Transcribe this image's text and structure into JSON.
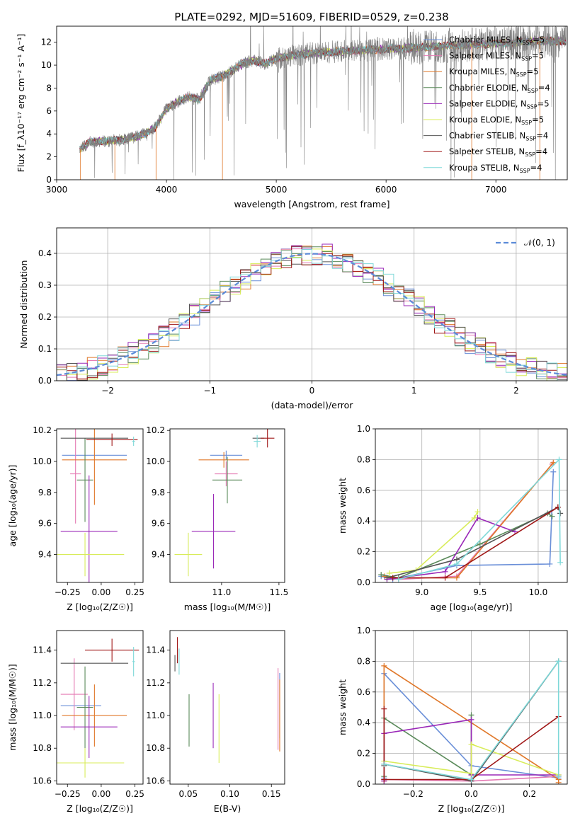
{
  "title": "PLATE=0292, MJD=51609, FIBERID=0529, z=0.238",
  "models": [
    {
      "name": "Chabrier MILES",
      "nssp": "5",
      "color": "#6a8fd8"
    },
    {
      "name": "Salpeter MILES",
      "nssp": "5",
      "color": "#e57ab3"
    },
    {
      "name": "Kroupa MILES",
      "nssp": "5",
      "color": "#e0782a"
    },
    {
      "name": "Chabrier ELODIE",
      "nssp": "4",
      "color": "#5a8a5a"
    },
    {
      "name": "Salpeter ELODIE",
      "nssp": "5",
      "color": "#9a28b8"
    },
    {
      "name": "Kroupa ELODIE",
      "nssp": "5",
      "color": "#d8ec5a"
    },
    {
      "name": "Chabrier STELIB",
      "nssp": "4",
      "color": "#555555"
    },
    {
      "name": "Salpeter STELIB",
      "nssp": "4",
      "color": "#a01818"
    },
    {
      "name": "Kroupa STELIB",
      "nssp": "4",
      "color": "#7ed8d8"
    }
  ],
  "chart_data": [
    {
      "id": "spectrum",
      "type": "line",
      "xlabel": "wavelength [Angstrom, rest frame]",
      "ylabel": "Flux [f_λ10⁻¹⁷ erg cm⁻² s⁻¹ A⁻¹]",
      "xlim": [
        3000,
        7650
      ],
      "ylim": [
        0,
        13.4
      ],
      "xticks": [
        3000,
        4000,
        5000,
        6000,
        7000
      ],
      "yticks": [
        0,
        2,
        4,
        6,
        8,
        10,
        12
      ],
      "data_color": "#808080",
      "continuum_x": [
        3200,
        3300,
        3500,
        3600,
        3700,
        3800,
        3900,
        4000,
        4100,
        4200,
        4300,
        4400,
        4500,
        4600,
        4700,
        4800,
        4900,
        5000,
        5200,
        5400,
        5600,
        5800,
        6000,
        6200,
        6400,
        6600,
        6800,
        7000,
        7200,
        7400,
        7600
      ],
      "continuum_y": [
        2.6,
        3.3,
        3.4,
        3.5,
        3.7,
        4.0,
        4.6,
        6.2,
        6.8,
        7.2,
        7.0,
        8.7,
        9.0,
        9.5,
        10.2,
        10.4,
        10.1,
        10.6,
        10.9,
        11.1,
        11.2,
        11.3,
        11.4,
        11.5,
        11.6,
        11.7,
        11.8,
        11.9,
        12.0,
        12.1,
        12.1
      ],
      "legend_position": "upper-right"
    },
    {
      "id": "residuals",
      "type": "histogram",
      "xlabel": "(data-model)/error",
      "ylabel": "Normed distribution",
      "xlim": [
        -2.5,
        2.5
      ],
      "ylim": [
        0,
        0.48
      ],
      "xticks": [
        -2,
        -1,
        0,
        1,
        2
      ],
      "yticks": [
        0.0,
        0.1,
        0.2,
        0.3,
        0.4
      ],
      "bin_width": 0.1,
      "curve_label": "𝒩(0, 1)",
      "curve_color": "#5b8bd8",
      "legend_position": "upper-right"
    },
    {
      "id": "age-vs-Z",
      "type": "errorbar",
      "xlabel": "Z [log₁₀(Z/Z☉)]",
      "ylabel": "age  [log₁₀(age/yr)]",
      "xlim": [
        -0.33,
        0.31
      ],
      "ylim": [
        9.22,
        10.21
      ],
      "xticks": [
        -0.25,
        0.0,
        0.25
      ],
      "xticklabels": [
        "−0.25",
        "0.00",
        "0.25"
      ],
      "yticks": [
        9.4,
        9.6,
        9.8,
        10.0,
        10.2
      ],
      "points": [
        {
          "m": 0,
          "x": -0.05,
          "xe": 0.24,
          "y": 10.04,
          "ye": 0.0
        },
        {
          "m": 1,
          "x": -0.19,
          "xe": 0.04,
          "y": 9.92,
          "ye": 0.32
        },
        {
          "m": 2,
          "x": -0.05,
          "xe": 0.24,
          "y": 10.01,
          "ye": 0.29
        },
        {
          "m": 3,
          "x": -0.12,
          "xe": 0.06,
          "y": 9.88,
          "ye": 0.27
        },
        {
          "m": 4,
          "x": -0.09,
          "xe": 0.21,
          "y": 9.55,
          "ye": 0.36
        },
        {
          "m": 5,
          "x": -0.12,
          "xe": 0.29,
          "y": 9.4,
          "ye": 0.14
        },
        {
          "m": 6,
          "x": -0.05,
          "xe": 0.25,
          "y": 10.15,
          "ye": 0.0
        },
        {
          "m": 7,
          "x": 0.08,
          "xe": 0.19,
          "y": 10.14,
          "ye": 0.04
        },
        {
          "m": 8,
          "x": 0.24,
          "xe": 0.01,
          "y": 10.13,
          "ye": 0.03
        }
      ]
    },
    {
      "id": "age-vs-mass",
      "type": "errorbar",
      "xlabel": "mass [log₁₀(M/M☉)]",
      "ylabel": "",
      "xlim": [
        10.55,
        11.55
      ],
      "ylim": [
        9.22,
        10.21
      ],
      "xticks": [
        11.0,
        11.5
      ],
      "yticks": [
        9.4,
        9.6,
        9.8,
        10.0,
        10.2
      ],
      "points": [
        {
          "m": 0,
          "x": 11.04,
          "xe": 0.14,
          "y": 10.04,
          "ye": 0.03
        },
        {
          "m": 1,
          "x": 11.04,
          "xe": 0.1,
          "y": 9.92,
          "ye": 0.08
        },
        {
          "m": 2,
          "x": 11.02,
          "xe": 0.22,
          "y": 10.01,
          "ye": 0.05
        },
        {
          "m": 3,
          "x": 11.05,
          "xe": 0.13,
          "y": 9.88,
          "ye": 0.15
        },
        {
          "m": 4,
          "x": 10.93,
          "xe": 0.19,
          "y": 9.55,
          "ye": 0.24
        },
        {
          "m": 5,
          "x": 10.71,
          "xe": 0.12,
          "y": 9.4,
          "ye": 0.14
        },
        {
          "m": 6,
          "x": 11.32,
          "xe": 0.05,
          "y": 10.15,
          "ye": 0.0
        },
        {
          "m": 7,
          "x": 11.4,
          "xe": 0.06,
          "y": 10.15,
          "ye": 0.06
        },
        {
          "m": 8,
          "x": 11.31,
          "xe": 0.03,
          "y": 10.13,
          "ye": 0.04
        }
      ]
    },
    {
      "id": "mass-weight-vs-age",
      "type": "line",
      "xlabel": "age  [log₁₀(age/yr)]",
      "ylabel": "mass weight",
      "xlim": [
        8.6,
        10.25
      ],
      "ylim": [
        0,
        1.0
      ],
      "xticks": [
        9.0,
        9.5,
        10.0
      ],
      "yticks": [
        0.0,
        0.2,
        0.4,
        0.6,
        0.8,
        1.0
      ],
      "series": [
        {
          "m": 0,
          "x": [
            8.65,
            8.75,
            9.3,
            10.1,
            10.13
          ],
          "y": [
            0.04,
            0.02,
            0.11,
            0.12,
            0.72
          ]
        },
        {
          "m": 1,
          "x": [
            8.7,
            8.8,
            9.3,
            10.12
          ],
          "y": [
            0.03,
            0.02,
            0.04,
            0.77
          ]
        },
        {
          "m": 2,
          "x": [
            8.68,
            8.8,
            9.3,
            10.13
          ],
          "y": [
            0.04,
            0.03,
            0.03,
            0.78
          ]
        },
        {
          "m": 3,
          "x": [
            8.65,
            8.8,
            9.5,
            10.08,
            10.12
          ],
          "y": [
            0.05,
            0.03,
            0.25,
            0.45,
            0.43
          ]
        },
        {
          "m": 4,
          "x": [
            8.7,
            9.2,
            9.48,
            9.8
          ],
          "y": [
            0.02,
            0.07,
            0.42,
            0.33
          ]
        },
        {
          "m": 5,
          "x": [
            8.72,
            8.95,
            9.45,
            9.48
          ],
          "y": [
            0.06,
            0.08,
            0.42,
            0.46
          ]
        },
        {
          "m": 6,
          "x": [
            8.7,
            9.3,
            10.17,
            10.19
          ],
          "y": [
            0.03,
            0.15,
            0.49,
            0.45
          ]
        },
        {
          "m": 7,
          "x": [
            8.75,
            9.2,
            10.17
          ],
          "y": [
            0.03,
            0.03,
            0.49
          ]
        },
        {
          "m": 8,
          "x": [
            8.8,
            9.3,
            10.18,
            10.19
          ],
          "y": [
            0.02,
            0.12,
            0.8,
            0.13
          ]
        }
      ]
    },
    {
      "id": "mass-vs-Z",
      "type": "errorbar",
      "xlabel": "Z [log₁₀(Z/Z☉)]",
      "ylabel": "mass [log₁₀(M/M☉)]",
      "xlim": [
        -0.33,
        0.31
      ],
      "ylim": [
        10.58,
        11.52
      ],
      "xticks": [
        -0.25,
        0.0,
        0.25
      ],
      "xticklabels": [
        "−0.25",
        "0.00",
        "0.25"
      ],
      "yticks": [
        10.6,
        10.8,
        11.0,
        11.2,
        11.4
      ],
      "points": [
        {
          "m": 0,
          "x": -0.15,
          "xe": 0.15,
          "y": 11.06,
          "ye": 0.0
        },
        {
          "m": 1,
          "x": -0.2,
          "xe": 0.1,
          "y": 11.13,
          "ye": 0.22
        },
        {
          "m": 2,
          "x": -0.05,
          "xe": 0.24,
          "y": 11.0,
          "ye": 0.19
        },
        {
          "m": 3,
          "x": -0.12,
          "xe": 0.06,
          "y": 11.05,
          "ye": 0.25
        },
        {
          "m": 4,
          "x": -0.09,
          "xe": 0.21,
          "y": 10.93,
          "ye": 0.19
        },
        {
          "m": 5,
          "x": -0.12,
          "xe": 0.29,
          "y": 10.71,
          "ye": 0.09
        },
        {
          "m": 6,
          "x": -0.05,
          "xe": 0.25,
          "y": 11.32,
          "ye": 0.0
        },
        {
          "m": 7,
          "x": 0.08,
          "xe": 0.2,
          "y": 11.4,
          "ye": 0.07
        },
        {
          "m": 8,
          "x": 0.24,
          "xe": 0.01,
          "y": 11.33,
          "ye": 0.09
        }
      ]
    },
    {
      "id": "mass-vs-EBV",
      "type": "errorbar",
      "xlabel": "E(B-V)",
      "ylabel": "",
      "xlim": [
        0.028,
        0.166
      ],
      "ylim": [
        10.58,
        11.52
      ],
      "xticks": [
        0.05,
        0.1,
        0.15
      ],
      "xticklabels": [
        "0.05",
        "0.10",
        "0.15"
      ],
      "yticks": [
        10.6,
        10.8,
        11.0,
        11.2,
        11.4
      ],
      "points": [
        {
          "m": 0,
          "x": 0.16,
          "xe": 0.0,
          "y": 11.06,
          "ye": 0.2
        },
        {
          "m": 1,
          "x": 0.158,
          "xe": 0.0,
          "y": 11.04,
          "ye": 0.25
        },
        {
          "m": 2,
          "x": 0.16,
          "xe": 0.0,
          "y": 11.0,
          "ye": 0.22
        },
        {
          "m": 3,
          "x": 0.051,
          "xe": 0.0,
          "y": 10.97,
          "ye": 0.16
        },
        {
          "m": 4,
          "x": 0.08,
          "xe": 0.0,
          "y": 11.0,
          "ye": 0.2
        },
        {
          "m": 5,
          "x": 0.087,
          "xe": 0.0,
          "y": 10.92,
          "ye": 0.21
        },
        {
          "m": 6,
          "x": 0.034,
          "xe": 0.0,
          "y": 11.32,
          "ye": 0.05
        },
        {
          "m": 7,
          "x": 0.037,
          "xe": 0.0,
          "y": 11.4,
          "ye": 0.08
        },
        {
          "m": 8,
          "x": 0.039,
          "xe": 0.0,
          "y": 11.33,
          "ye": 0.08
        }
      ]
    },
    {
      "id": "mass-weight-vs-Z",
      "type": "line",
      "xlabel": "Z [log₁₀(Z/Z☉)]",
      "ylabel": "mass weight",
      "xlim": [
        -0.33,
        0.33
      ],
      "ylim": [
        0,
        1.0
      ],
      "xticks": [
        -0.2,
        0.0,
        0.2
      ],
      "xticklabels": [
        "−0.2",
        "0.0",
        "0.2"
      ],
      "yticks": [
        0.0,
        0.2,
        0.4,
        0.6,
        0.8,
        1.0
      ],
      "series": [
        {
          "m": 0,
          "x": [
            -0.3,
            -0.3,
            0.0,
            0.3
          ],
          "y": [
            0.04,
            0.72,
            0.12,
            0.04
          ]
        },
        {
          "m": 1,
          "x": [
            -0.3,
            0.0,
            0.3
          ],
          "y": [
            0.03,
            0.02,
            0.05
          ]
        },
        {
          "m": 2,
          "x": [
            -0.3,
            -0.3,
            0.3,
            0.3
          ],
          "y": [
            0.02,
            0.77,
            0.03,
            0.01
          ]
        },
        {
          "m": 3,
          "x": [
            -0.3,
            -0.3,
            0.0,
            0.0
          ],
          "y": [
            0.05,
            0.43,
            0.06,
            0.45
          ]
        },
        {
          "m": 4,
          "x": [
            -0.3,
            -0.3,
            0.0,
            0.0,
            0.3
          ],
          "y": [
            0.02,
            0.33,
            0.42,
            0.06,
            0.06
          ]
        },
        {
          "m": 5,
          "x": [
            -0.3,
            0.0,
            0.0,
            0.3
          ],
          "y": [
            0.15,
            0.07,
            0.26,
            0.06
          ]
        },
        {
          "m": 6,
          "x": [
            -0.3,
            -0.3,
            0.0,
            0.3
          ],
          "y": [
            0.12,
            0.13,
            0.02,
            0.8
          ]
        },
        {
          "m": 7,
          "x": [
            -0.3,
            -0.3,
            0.0,
            0.3
          ],
          "y": [
            0.49,
            0.03,
            0.03,
            0.44
          ]
        },
        {
          "m": 8,
          "x": [
            -0.3,
            0.0,
            0.3,
            0.3
          ],
          "y": [
            0.13,
            0.03,
            0.8,
            0.05
          ]
        }
      ]
    }
  ]
}
